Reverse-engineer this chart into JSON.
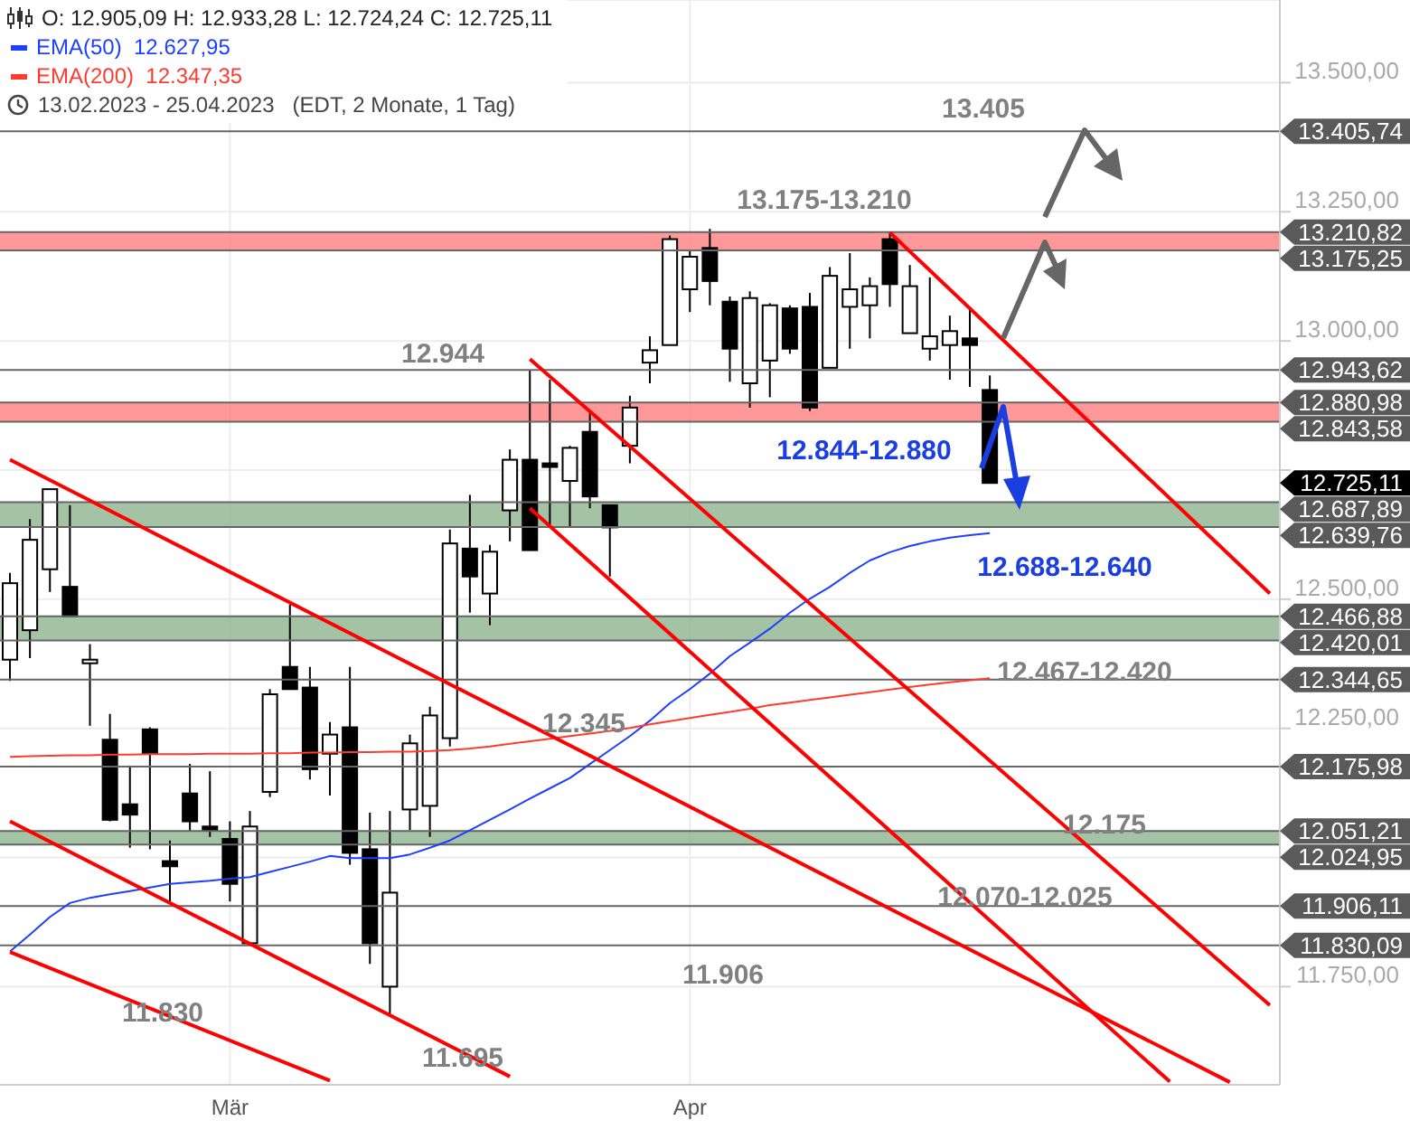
{
  "chart_data": {
    "type": "candlestick",
    "title": "O: 12.905,09  H: 12.933,28  L: 12.724,24  C: 12.725,11",
    "subtitle": "13.02.2023 - 25.04.2023   (EDT, 2 Monate, 1 Tag)",
    "categories": [
      null,
      null,
      null,
      null,
      null,
      null,
      null,
      null,
      null,
      null,
      null,
      "Mär",
      null,
      null,
      null,
      null,
      null,
      null,
      null,
      null,
      null,
      null,
      null,
      null,
      null,
      null,
      null,
      null,
      null,
      null,
      null,
      null,
      null,
      null,
      "Apr",
      null,
      null,
      null,
      null,
      null,
      null,
      null,
      null,
      null,
      null,
      null,
      null,
      null,
      null,
      null,
      null,
      null,
      null,
      null,
      null,
      null,
      null,
      null,
      null,
      null,
      null,
      null,
      null,
      null
    ],
    "ohlc": [
      [
        12383,
        12551,
        12342,
        12531
      ],
      [
        12440,
        12655,
        12386,
        12615
      ],
      [
        12558,
        12713,
        12514,
        12713
      ],
      [
        12524,
        12682,
        12467,
        12467
      ],
      [
        12376,
        12413,
        12255,
        12383
      ],
      [
        12228,
        12278,
        12070,
        12073
      ],
      [
        12103,
        12178,
        12019,
        12083
      ],
      [
        12248,
        12252,
        12016,
        12201
      ],
      [
        11993,
        12033,
        11915,
        11983
      ],
      [
        12124,
        12181,
        12050,
        12070
      ],
      [
        12060,
        12167,
        12040,
        12053
      ],
      [
        12036,
        12070,
        11915,
        11949
      ],
      [
        11834,
        12090,
        11834,
        12060
      ],
      [
        12127,
        12326,
        12117,
        12316
      ],
      [
        12369,
        12490,
        12326,
        12326
      ],
      [
        12329,
        12369,
        12151,
        12171
      ],
      [
        12201,
        12262,
        12120,
        12238
      ],
      [
        12252,
        12369,
        11986,
        12009
      ],
      [
        12016,
        12087,
        11794,
        11834
      ],
      [
        11750,
        12090,
        11695,
        11932
      ],
      [
        12093,
        12238,
        12053,
        12221
      ],
      [
        12100,
        12292,
        12040,
        12275
      ],
      [
        12231,
        12635,
        12215,
        12608
      ],
      [
        12598,
        12702,
        12474,
        12544
      ],
      [
        12511,
        12605,
        12450,
        12592
      ],
      [
        12672,
        12790,
        12612,
        12770
      ],
      [
        12770,
        12944,
        12595,
        12595
      ],
      [
        12763,
        12925,
        12642,
        12756
      ],
      [
        12729,
        12797,
        12639,
        12793
      ],
      [
        12824,
        12861,
        12676,
        12699
      ],
      [
        12682,
        12682,
        12544,
        12639
      ],
      [
        12797,
        12894,
        12763,
        12871
      ],
      [
        12958,
        13009,
        12918,
        12982
      ],
      [
        12992,
        13204,
        12992,
        13197
      ],
      [
        13100,
        13177,
        13056,
        13163
      ],
      [
        13180,
        13217,
        13069,
        13116
      ],
      [
        13076,
        13086,
        12921,
        12985
      ],
      [
        12918,
        13096,
        12871,
        13083
      ],
      [
        12962,
        13073,
        12891,
        13069
      ],
      [
        13063,
        13069,
        12975,
        12985
      ],
      [
        13066,
        13093,
        12864,
        12871
      ],
      [
        12948,
        13143,
        12948,
        13126
      ],
      [
        13066,
        13170,
        12985,
        13100
      ],
      [
        13069,
        13123,
        13005,
        13106
      ],
      [
        13197,
        13210,
        13066,
        13110
      ],
      [
        13015,
        13147,
        13015,
        13106
      ],
      [
        12985,
        13123,
        12962,
        13009
      ],
      [
        12992,
        13049,
        12925,
        13019
      ],
      [
        13005,
        13063,
        12911,
        12992
      ],
      [
        12905.09,
        12933.28,
        12724.24,
        12725.11
      ],
      null,
      null,
      null,
      null,
      null,
      null,
      null,
      null,
      null,
      null,
      null,
      null,
      null,
      null
    ],
    "ylim": [
      11560,
      13660
    ],
    "yticks": [
      {
        "value": 11750,
        "label": "11.750,00"
      },
      {
        "value": 12000,
        "label": null
      },
      {
        "value": 12250,
        "label": "12.250,00"
      },
      {
        "value": 12500,
        "label": "12.500,00"
      },
      {
        "value": 12750,
        "label": null
      },
      {
        "value": 13000,
        "label": "13.000,00"
      },
      {
        "value": 13250,
        "label": "13.250,00"
      },
      {
        "value": 13500,
        "label": "13.500,00"
      }
    ],
    "series": [
      {
        "name": "EMA(50)  12.627,95",
        "type": "line",
        "color": "#1f3fff",
        "values": [
          11818,
          11851,
          11885,
          11912,
          11922,
          11929,
          11935,
          11942,
          11949,
          11952,
          11955,
          11959,
          11962,
          11972,
          11982,
          11992,
          12003,
          11999,
          11999,
          11999,
          12006,
          12019,
          12033,
          12053,
          12073,
          12093,
          12114,
          12134,
          12154,
          12181,
          12208,
          12235,
          12265,
          12299,
          12326,
          12356,
          12390,
          12416,
          12443,
          12474,
          12501,
          12524,
          12551,
          12575,
          12591,
          12603,
          12612,
          12619,
          12624,
          12628,
          null,
          null,
          null,
          null,
          null,
          null,
          null,
          null,
          null,
          null,
          null,
          null,
          null,
          null
        ]
      },
      {
        "name": "EMA(200)  12.347,35",
        "type": "line",
        "color": "#ff3b30",
        "values": [
          12195,
          12196,
          12197,
          12198,
          12198,
          12199,
          12199,
          12200,
          12200,
          12200,
          12201,
          12201,
          12201,
          12202,
          12202,
          12203,
          12203,
          12204,
          12204,
          12205,
          12205,
          12206,
          12208,
          12211,
          12215,
          12220,
          12225,
          12230,
          12235,
          12240,
          12245,
          12251,
          12258,
          12264,
          12270,
          12276,
          12282,
          12288,
          12295,
          12300,
          12305,
          12310,
          12315,
          12320,
          12325,
          12330,
          12335,
          12339,
          12343,
          12347,
          null,
          null,
          null,
          null,
          null,
          null,
          null,
          null,
          null,
          null,
          null,
          null,
          null,
          null
        ]
      },
      {
        "type": "line",
        "color": "#ff0000",
        "values": [
          12770,
          null,
          null,
          null,
          null,
          null,
          null,
          null,
          null,
          null,
          null,
          null,
          null,
          null,
          null,
          null,
          null,
          null,
          null,
          null,
          null,
          null,
          null,
          null,
          null,
          null,
          null,
          null,
          null,
          null,
          null,
          null,
          null,
          null,
          null,
          null,
          null,
          null,
          null,
          null,
          null,
          null,
          null,
          null,
          null,
          null,
          null,
          null,
          null,
          null,
          null,
          null,
          null,
          null,
          null,
          null,
          null,
          null,
          null,
          null,
          null,
          11565,
          null,
          null
        ]
      },
      {
        "type": "line",
        "color": "#ff0000",
        "values": [
          12070,
          null,
          null,
          null,
          null,
          null,
          null,
          null,
          null,
          null,
          null,
          null,
          null,
          null,
          null,
          null,
          null,
          null,
          null,
          null,
          null,
          null,
          null,
          null,
          null,
          11576,
          null,
          null,
          null,
          null,
          null,
          null,
          null,
          null,
          null,
          null,
          null,
          null,
          null,
          null,
          null,
          null,
          null,
          null,
          null,
          null,
          null,
          null,
          null,
          null,
          null,
          null,
          null,
          null,
          null,
          null,
          null,
          null,
          null,
          null,
          null,
          null,
          null,
          null
        ]
      },
      {
        "type": "line",
        "color": "#ff0000",
        "values": [
          11817,
          null,
          null,
          null,
          null,
          null,
          null,
          null,
          null,
          null,
          null,
          null,
          null,
          null,
          null,
          null,
          11568,
          null,
          null,
          null,
          null,
          null,
          null,
          null,
          null,
          null,
          null,
          null,
          null,
          null,
          null,
          null,
          null,
          null,
          null,
          null,
          null,
          null,
          null,
          null,
          null,
          null,
          null,
          null,
          null,
          null,
          null,
          null,
          null,
          null,
          null,
          null,
          null,
          null,
          null,
          null,
          null,
          null,
          null,
          null,
          null,
          null,
          null,
          null
        ]
      },
      {
        "type": "line",
        "color": "#ff0000",
        "values": [
          null,
          null,
          null,
          null,
          null,
          null,
          null,
          null,
          null,
          null,
          null,
          null,
          null,
          null,
          null,
          null,
          null,
          null,
          null,
          null,
          null,
          null,
          null,
          null,
          null,
          null,
          12965,
          null,
          null,
          null,
          null,
          null,
          null,
          null,
          null,
          null,
          null,
          null,
          null,
          null,
          null,
          null,
          null,
          null,
          null,
          null,
          null,
          null,
          null,
          null,
          null,
          null,
          null,
          null,
          null,
          null,
          null,
          null,
          null,
          null,
          null,
          null,
          null,
          11714
        ]
      },
      {
        "type": "line",
        "color": "#ff0000",
        "values": [
          null,
          null,
          null,
          null,
          null,
          null,
          null,
          null,
          null,
          null,
          null,
          null,
          null,
          null,
          null,
          null,
          null,
          null,
          null,
          null,
          null,
          null,
          null,
          null,
          null,
          null,
          12676,
          null,
          null,
          null,
          null,
          null,
          null,
          null,
          null,
          null,
          null,
          null,
          null,
          null,
          null,
          null,
          null,
          null,
          null,
          null,
          null,
          null,
          null,
          null,
          null,
          null,
          null,
          null,
          null,
          null,
          null,
          null,
          11566,
          null,
          null,
          null,
          null,
          null
        ]
      },
      {
        "type": "line",
        "color": "#ff0000",
        "values": [
          null,
          null,
          null,
          null,
          null,
          null,
          null,
          null,
          null,
          null,
          null,
          null,
          null,
          null,
          null,
          null,
          null,
          null,
          null,
          null,
          null,
          null,
          null,
          null,
          null,
          null,
          null,
          null,
          null,
          null,
          null,
          null,
          null,
          null,
          null,
          null,
          null,
          null,
          null,
          null,
          null,
          null,
          null,
          null,
          13210,
          null,
          null,
          null,
          null,
          null,
          null,
          null,
          null,
          null,
          null,
          null,
          null,
          null,
          null,
          null,
          null,
          null,
          null,
          12511
        ]
      }
    ],
    "bands": [
      {
        "axis": "y",
        "from": 13175.25,
        "to": 13210.82,
        "color": "#ff8080"
      },
      {
        "axis": "y",
        "from": 12843.58,
        "to": 12880.98,
        "color": "#ff8080"
      },
      {
        "axis": "y",
        "from": 12639.76,
        "to": 12687.89,
        "color": "#8db38d"
      },
      {
        "axis": "y",
        "from": 12420.01,
        "to": 12466.88,
        "color": "#8db38d"
      },
      {
        "axis": "y",
        "from": 12024.95,
        "to": 12051.21,
        "color": "#8db38d"
      }
    ],
    "ref_lines": [
      {
        "axis": "y",
        "value": 13405.74,
        "label": "13.405,74",
        "color": "#666666"
      },
      {
        "axis": "y",
        "value": 13210.82,
        "label": "13.210,82",
        "color": "#666666"
      },
      {
        "axis": "y",
        "value": 13175.25,
        "label": "13.175,25",
        "color": "#666666"
      },
      {
        "axis": "y",
        "value": 12943.62,
        "label": "12.943,62",
        "color": "#666666"
      },
      {
        "axis": "y",
        "value": 12880.98,
        "label": "12.880,98",
        "color": "#666666"
      },
      {
        "axis": "y",
        "value": 12843.58,
        "label": "12.843,58",
        "color": "#666666"
      },
      {
        "axis": "y",
        "value": 12687.89,
        "label": "12.687,89",
        "color": "#666666"
      },
      {
        "axis": "y",
        "value": 12639.76,
        "label": "12.639,76",
        "color": "#666666"
      },
      {
        "axis": "y",
        "value": 12466.88,
        "label": "12.466,88",
        "color": "#666666"
      },
      {
        "axis": "y",
        "value": 12420.01,
        "label": "12.420,01",
        "color": "#666666"
      },
      {
        "axis": "y",
        "value": 12344.65,
        "label": "12.344,65",
        "color": "#666666"
      },
      {
        "axis": "y",
        "value": 12175.98,
        "label": "12.175,98",
        "color": "#666666"
      },
      {
        "axis": "y",
        "value": 12051.21,
        "label": "12.051,21",
        "color": "#666666"
      },
      {
        "axis": "y",
        "value": 12024.95,
        "label": "12.024,95",
        "color": "#666666"
      },
      {
        "axis": "y",
        "value": 11906.11,
        "label": "11.906,11",
        "color": "#666666"
      },
      {
        "axis": "y",
        "value": 11830.09,
        "label": "11.830,09",
        "color": "#666666"
      }
    ],
    "annotations": [
      {
        "text": "13.405",
        "y": 13405
      },
      {
        "text": "13.175-13.210",
        "y": 13210
      },
      {
        "text": "12.944",
        "y": 12944
      },
      {
        "text": "12.844-12.880",
        "y": 12844
      },
      {
        "text": "12.688-12.640",
        "y": 12640
      },
      {
        "text": "12.467-12.420",
        "y": 12420
      },
      "12.345",
      "12.175",
      {
        "text": "12.070-12.025",
        "y": 12025
      },
      "11.906",
      "11.830",
      "11.695",
      "12.725,11"
    ],
    "grid": true,
    "legend": "top left",
    "marker": "none",
    "line_style": "solid"
  }
}
